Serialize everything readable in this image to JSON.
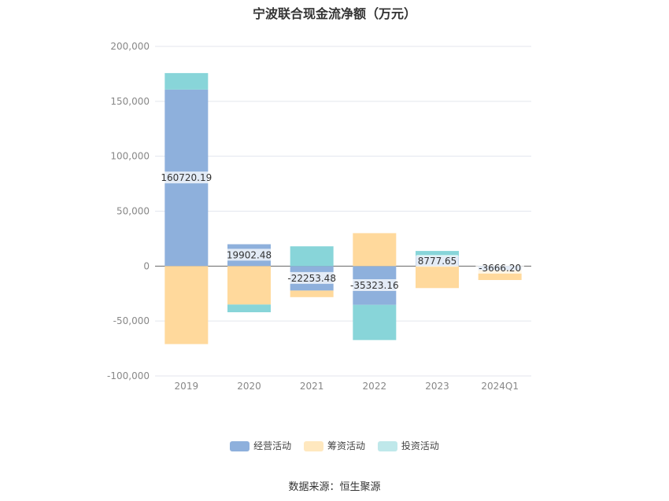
{
  "chart_data": {
    "type": "bar",
    "stacked": true,
    "title": "宁波联合现金流净额（万元）",
    "categories": [
      "2019",
      "2020",
      "2021",
      "2022",
      "2023",
      "2024Q1"
    ],
    "series": [
      {
        "name": "经营活动",
        "color": "#8eb0dc",
        "values": [
          160720.19,
          19902.48,
          -22253.48,
          -35323.16,
          8777.65,
          -3666.2
        ],
        "labels": [
          "160720.19",
          "19902.48",
          "-22253.48",
          "-35323.16",
          "8777.65",
          "-3666.20"
        ]
      },
      {
        "name": "筹资活动",
        "color": "#ffd99c",
        "values": [
          -71000,
          -35000,
          -6000,
          30000,
          -20000,
          -9000
        ]
      },
      {
        "name": "投资活动",
        "color": "#88d5d9",
        "values": [
          15000,
          -7000,
          18000,
          -32000,
          5000,
          0
        ]
      }
    ],
    "ylim": [
      -100000,
      200000
    ],
    "yticks": [
      "200,000",
      "150,000",
      "100,000",
      "50,000",
      "0",
      "-50,000",
      "-100,000"
    ],
    "ytick_values": [
      200000,
      150000,
      100000,
      50000,
      0,
      -50000,
      -100000
    ],
    "grid": true,
    "legend_position": "bottom"
  },
  "source_text": "数据来源：恒生聚源"
}
